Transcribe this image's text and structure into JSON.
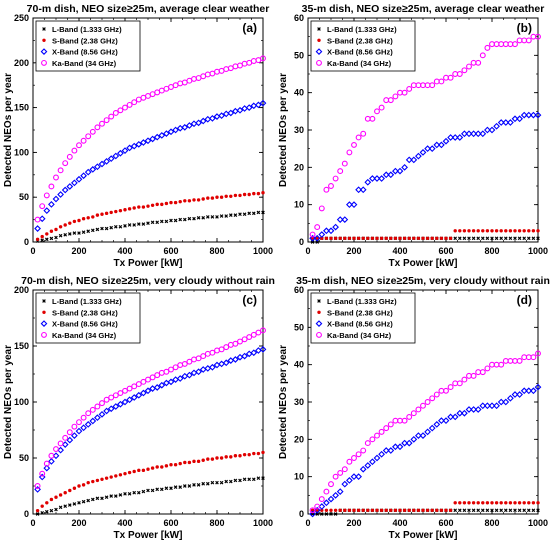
{
  "figure": {
    "series_styles": [
      {
        "marker": "x",
        "color": "#000000"
      },
      {
        "marker": "dot",
        "color": "#e00000"
      },
      {
        "marker": "diamond",
        "color": "#0000ff"
      },
      {
        "marker": "circle",
        "color": "#ff00ff"
      }
    ]
  },
  "chart_data": [
    {
      "type": "scatter",
      "panel": "(a)",
      "title": "70-m dish, NEO size≥25m, average clear weather",
      "xlabel": "Tx Power [kW]",
      "ylabel": "Detected NEOs per year",
      "xlim": [
        0,
        1000
      ],
      "ylim": [
        0,
        250
      ],
      "xticks": [
        0,
        200,
        400,
        600,
        800,
        1000
      ],
      "yticks": [
        0,
        50,
        100,
        150,
        200,
        250
      ],
      "grid": false,
      "legend_position": "top-left",
      "x": [
        20,
        40,
        60,
        80,
        100,
        120,
        140,
        160,
        180,
        200,
        220,
        240,
        260,
        280,
        300,
        320,
        340,
        360,
        380,
        400,
        420,
        440,
        460,
        480,
        500,
        520,
        540,
        560,
        580,
        600,
        620,
        640,
        660,
        680,
        700,
        720,
        740,
        760,
        780,
        800,
        820,
        840,
        860,
        880,
        900,
        920,
        940,
        960,
        980,
        1000
      ],
      "series": [
        {
          "name": "L-Band (1.333 GHz)",
          "values": [
            1,
            2,
            3,
            4,
            5,
            7,
            8,
            9,
            10,
            10,
            11,
            12,
            13,
            14,
            15,
            15,
            16,
            17,
            17,
            18,
            19,
            19,
            20,
            20,
            21,
            22,
            22,
            23,
            23,
            24,
            24,
            25,
            25,
            26,
            26,
            27,
            27,
            28,
            28,
            28,
            29,
            29,
            30,
            30,
            31,
            31,
            32,
            32,
            33,
            33
          ]
        },
        {
          "name": "S-Band (2.38 GHz)",
          "values": [
            3,
            6,
            9,
            12,
            14,
            17,
            19,
            21,
            23,
            24,
            26,
            27,
            28,
            30,
            31,
            32,
            33,
            34,
            35,
            36,
            37,
            38,
            39,
            39,
            40,
            41,
            42,
            42,
            43,
            44,
            44,
            45,
            46,
            46,
            47,
            47,
            48,
            49,
            49,
            50,
            50,
            51,
            51,
            52,
            52,
            53,
            53,
            54,
            54,
            55
          ]
        },
        {
          "name": "X-Band (8.56 GHz)",
          "values": [
            15,
            26,
            35,
            42,
            48,
            53,
            58,
            62,
            66,
            70,
            74,
            78,
            81,
            84,
            87,
            90,
            93,
            96,
            99,
            102,
            105,
            107,
            109,
            111,
            113,
            115,
            117,
            119,
            121,
            123,
            125,
            127,
            128,
            130,
            132,
            133,
            135,
            137,
            138,
            140,
            141,
            143,
            144,
            146,
            147,
            149,
            150,
            152,
            153,
            155
          ]
        },
        {
          "name": "Ka-Band (34 GHz)",
          "values": [
            25,
            40,
            52,
            62,
            72,
            80,
            88,
            95,
            102,
            108,
            113,
            118,
            123,
            128,
            132,
            136,
            140,
            144,
            147,
            150,
            153,
            156,
            159,
            161,
            163,
            165,
            167,
            169,
            171,
            173,
            175,
            177,
            178,
            180,
            182,
            183,
            185,
            187,
            188,
            190,
            191,
            193,
            194,
            196,
            197,
            199,
            200,
            202,
            203,
            205
          ]
        }
      ]
    },
    {
      "type": "scatter",
      "panel": "(b)",
      "title": "35-m dish, NEO size≥25m, average clear weather",
      "xlabel": "Tx Power [kW]",
      "ylabel": "Detected NEOs per year",
      "xlim": [
        0,
        1000
      ],
      "ylim": [
        0,
        60
      ],
      "xticks": [
        0,
        200,
        400,
        600,
        800,
        1000
      ],
      "yticks": [
        0,
        10,
        20,
        30,
        40,
        50,
        60
      ],
      "grid": false,
      "legend_position": "top-left",
      "x": [
        20,
        40,
        60,
        80,
        100,
        120,
        140,
        160,
        180,
        200,
        220,
        240,
        260,
        280,
        300,
        320,
        340,
        360,
        380,
        400,
        420,
        440,
        460,
        480,
        500,
        520,
        540,
        560,
        580,
        600,
        620,
        640,
        660,
        680,
        700,
        720,
        740,
        760,
        780,
        800,
        820,
        840,
        860,
        880,
        900,
        920,
        940,
        960,
        980,
        1000
      ],
      "series": [
        {
          "name": "L-Band (1.333 GHz)",
          "values": [
            0,
            0,
            1,
            1,
            1,
            1,
            1,
            1,
            1,
            1,
            1,
            1,
            1,
            1,
            1,
            1,
            1,
            1,
            1,
            1,
            1,
            1,
            1,
            1,
            1,
            1,
            1,
            1,
            1,
            1,
            1,
            1,
            1,
            1,
            1,
            1,
            1,
            1,
            1,
            1,
            1,
            1,
            1,
            1,
            1,
            1,
            1,
            1,
            1,
            1
          ]
        },
        {
          "name": "S-Band (2.38 GHz)",
          "values": [
            1,
            1,
            1,
            1,
            1,
            1,
            1,
            1,
            1,
            1,
            1,
            1,
            1,
            1,
            1,
            1,
            1,
            1,
            1,
            1,
            1,
            1,
            1,
            1,
            1,
            1,
            1,
            1,
            1,
            1,
            1,
            3,
            3,
            3,
            3,
            3,
            3,
            3,
            3,
            3,
            3,
            3,
            3,
            3,
            3,
            3,
            3,
            3,
            3,
            3
          ]
        },
        {
          "name": "X-Band (8.56 GHz)",
          "values": [
            1,
            1,
            2,
            3,
            3,
            4,
            6,
            6,
            10,
            10,
            14,
            14,
            16,
            17,
            17,
            17,
            18,
            18,
            19,
            19,
            20,
            22,
            22,
            23,
            24,
            25,
            25,
            26,
            26,
            27,
            28,
            28,
            28,
            29,
            29,
            29,
            29,
            29,
            30,
            30,
            31,
            32,
            32,
            32,
            33,
            33,
            34,
            34,
            34,
            34
          ]
        },
        {
          "name": "Ka-Band (34 GHz)",
          "values": [
            2,
            4,
            9,
            14,
            15,
            17,
            19,
            21,
            24,
            26,
            28,
            29,
            33,
            33,
            35,
            36,
            38,
            38,
            39,
            40,
            40,
            41,
            42,
            42,
            42,
            42,
            42,
            43,
            43,
            44,
            44,
            45,
            45,
            46,
            47,
            48,
            48,
            50,
            52,
            53,
            53,
            53,
            53,
            53,
            53,
            54,
            54,
            54,
            55,
            55
          ]
        }
      ]
    },
    {
      "type": "scatter",
      "panel": "(c)",
      "title": "70-m dish, NEO size≥25m, very cloudy without rain",
      "xlabel": "Tx Power [kW]",
      "ylabel": "Detected NEOs per year",
      "xlim": [
        0,
        1000
      ],
      "ylim": [
        0,
        200
      ],
      "xticks": [
        0,
        200,
        400,
        600,
        800,
        1000
      ],
      "yticks": [
        0,
        50,
        100,
        150,
        200
      ],
      "grid": false,
      "legend_position": "top-left",
      "x": [
        20,
        40,
        60,
        80,
        100,
        120,
        140,
        160,
        180,
        200,
        220,
        240,
        260,
        280,
        300,
        320,
        340,
        360,
        380,
        400,
        420,
        440,
        460,
        480,
        500,
        520,
        540,
        560,
        580,
        600,
        620,
        640,
        660,
        680,
        700,
        720,
        740,
        760,
        780,
        800,
        820,
        840,
        860,
        880,
        900,
        920,
        940,
        960,
        980,
        1000
      ],
      "series": [
        {
          "name": "L-Band (1.333 GHz)",
          "values": [
            0,
            1,
            2,
            3,
            4,
            6,
            7,
            8,
            9,
            10,
            11,
            12,
            13,
            14,
            14,
            15,
            16,
            16,
            17,
            18,
            18,
            19,
            19,
            20,
            21,
            21,
            22,
            22,
            23,
            23,
            24,
            24,
            25,
            25,
            26,
            26,
            27,
            27,
            28,
            28,
            28,
            29,
            29,
            30,
            30,
            31,
            31,
            31,
            32,
            32
          ]
        },
        {
          "name": "S-Band (2.38 GHz)",
          "values": [
            3,
            7,
            10,
            13,
            15,
            17,
            19,
            21,
            23,
            25,
            26,
            28,
            29,
            30,
            31,
            32,
            33,
            34,
            35,
            36,
            37,
            38,
            39,
            39,
            40,
            41,
            42,
            42,
            43,
            44,
            44,
            45,
            46,
            46,
            47,
            47,
            48,
            49,
            49,
            50,
            50,
            51,
            51,
            52,
            52,
            53,
            53,
            54,
            54,
            55
          ]
        },
        {
          "name": "X-Band (8.56 GHz)",
          "values": [
            22,
            33,
            41,
            47,
            52,
            57,
            62,
            66,
            70,
            74,
            77,
            80,
            83,
            86,
            89,
            92,
            94,
            96,
            98,
            100,
            102,
            104,
            106,
            108,
            110,
            112,
            113,
            115,
            117,
            118,
            120,
            121,
            123,
            124,
            126,
            127,
            129,
            130,
            131,
            133,
            134,
            135,
            137,
            138,
            140,
            141,
            143,
            144,
            146,
            147
          ]
        },
        {
          "name": "Ka-Band (34 GHz)",
          "values": [
            25,
            36,
            45,
            52,
            58,
            63,
            68,
            73,
            78,
            82,
            86,
            90,
            93,
            96,
            99,
            102,
            104,
            106,
            108,
            110,
            112,
            114,
            116,
            118,
            120,
            122,
            124,
            126,
            127,
            129,
            131,
            133,
            134,
            136,
            138,
            139,
            141,
            143,
            144,
            146,
            147,
            149,
            151,
            152,
            154,
            156,
            158,
            160,
            162,
            164
          ]
        }
      ]
    },
    {
      "type": "scatter",
      "panel": "(d)",
      "title": "35-m dish, NEO size≥25m, very cloudy without rain",
      "xlabel": "Tx Power [kW]",
      "ylabel": "Detected NEOs per year",
      "xlim": [
        0,
        1000
      ],
      "ylim": [
        0,
        60
      ],
      "xticks": [
        0,
        200,
        400,
        600,
        800,
        1000
      ],
      "yticks": [
        0,
        10,
        20,
        30,
        40,
        50,
        60
      ],
      "grid": false,
      "legend_position": "top-left",
      "x": [
        20,
        40,
        60,
        80,
        100,
        120,
        140,
        160,
        180,
        200,
        220,
        240,
        260,
        280,
        300,
        320,
        340,
        360,
        380,
        400,
        420,
        440,
        460,
        480,
        500,
        520,
        540,
        560,
        580,
        600,
        620,
        640,
        660,
        680,
        700,
        720,
        740,
        760,
        780,
        800,
        820,
        840,
        860,
        880,
        900,
        920,
        940,
        960,
        980,
        1000
      ],
      "series": [
        {
          "name": "L-Band (1.333 GHz)",
          "values": [
            0,
            0,
            0,
            0,
            0,
            0,
            1,
            1,
            1,
            1,
            1,
            1,
            1,
            1,
            1,
            1,
            1,
            1,
            1,
            1,
            1,
            1,
            1,
            1,
            1,
            1,
            1,
            1,
            1,
            1,
            1,
            1,
            1,
            1,
            1,
            1,
            1,
            1,
            1,
            1,
            1,
            1,
            1,
            1,
            1,
            1,
            1,
            1,
            1,
            1
          ]
        },
        {
          "name": "S-Band (2.38 GHz)",
          "values": [
            1,
            1,
            1,
            1,
            1,
            1,
            1,
            1,
            1,
            1,
            1,
            1,
            1,
            1,
            1,
            1,
            1,
            1,
            1,
            1,
            1,
            1,
            1,
            1,
            1,
            1,
            1,
            1,
            1,
            1,
            1,
            3,
            3,
            3,
            3,
            3,
            3,
            3,
            3,
            3,
            3,
            3,
            3,
            3,
            3,
            3,
            3,
            3,
            3,
            3
          ]
        },
        {
          "name": "X-Band (8.56 GHz)",
          "values": [
            0,
            1,
            2,
            3,
            4,
            5,
            6,
            8,
            9,
            10,
            10,
            12,
            13,
            14,
            15,
            16,
            17,
            17,
            18,
            18,
            19,
            19,
            20,
            21,
            21,
            22,
            23,
            24,
            25,
            25,
            26,
            26,
            27,
            27,
            28,
            28,
            28,
            29,
            29,
            29,
            29,
            30,
            30,
            31,
            32,
            32,
            33,
            33,
            33,
            34
          ]
        },
        {
          "name": "Ka-Band (34 GHz)",
          "values": [
            1,
            2,
            4,
            6,
            8,
            10,
            11,
            12,
            14,
            15,
            16,
            17,
            19,
            20,
            21,
            22,
            23,
            24,
            25,
            25,
            25,
            26,
            27,
            28,
            29,
            30,
            31,
            32,
            33,
            33,
            34,
            35,
            35,
            36,
            37,
            37,
            38,
            38,
            39,
            40,
            40,
            40,
            41,
            41,
            41,
            41,
            42,
            42,
            42,
            43
          ]
        }
      ]
    }
  ]
}
